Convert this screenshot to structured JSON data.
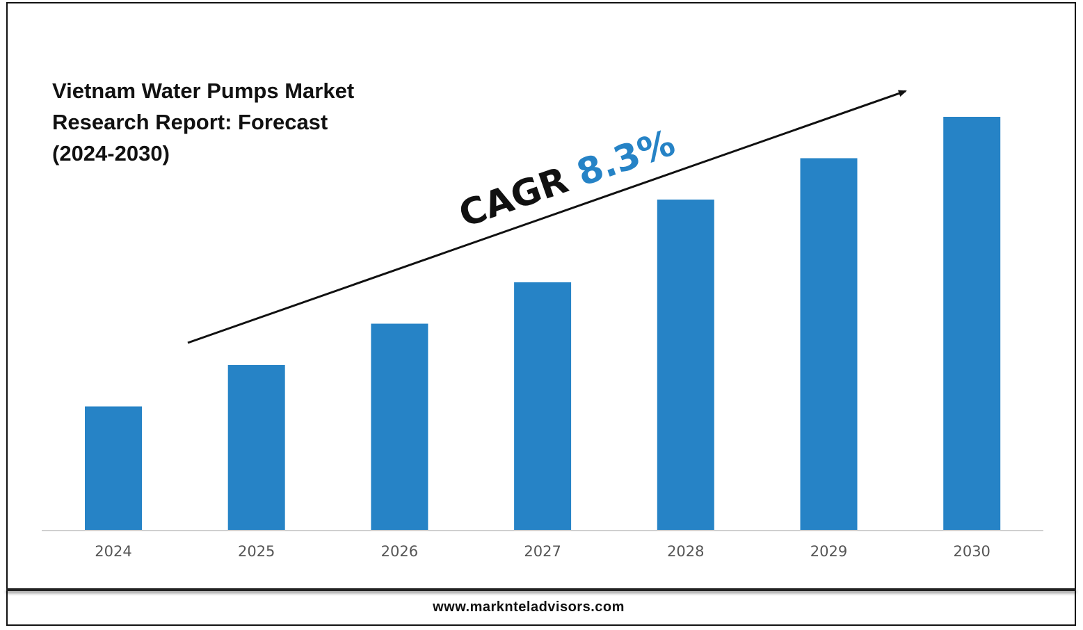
{
  "chart_data": {
    "type": "bar",
    "title": "Vietnam Water Pumps Market\nResearch Report: Forecast\n(2024-2030)",
    "categories": [
      "2024",
      "2025",
      "2026",
      "2027",
      "2028",
      "2029",
      "2030"
    ],
    "values": [
      30,
      40,
      50,
      60,
      80,
      90,
      100
    ],
    "ylim": [
      0,
      100
    ],
    "xlabel": "",
    "ylabel": "",
    "grid": false,
    "bar_color": "#2683c6",
    "annotation": {
      "label": "CAGR",
      "value": "8.3%",
      "arrow": "upward-trend"
    }
  },
  "footer": {
    "website": "www.marknteladvisors.com"
  }
}
